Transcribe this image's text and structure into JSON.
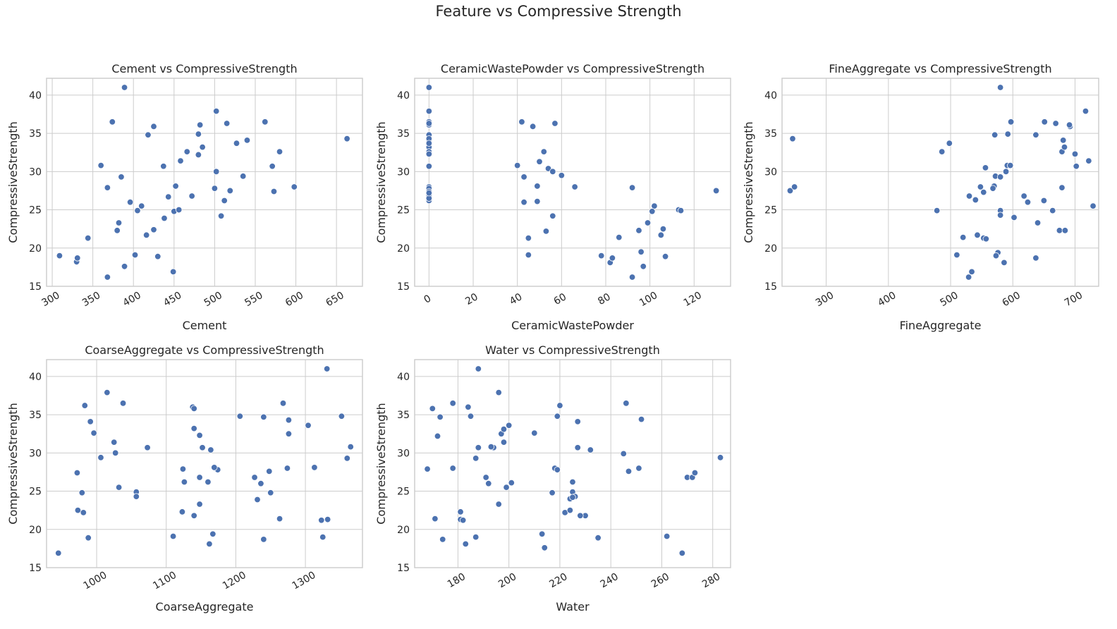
{
  "figure": {
    "title": "Feature vs Compressive Strength",
    "point_color": "#4c72b0",
    "grid_color": "#cccccc"
  },
  "chart_data": [
    {
      "type": "scatter",
      "title": "Cement vs CompressiveStrength",
      "xlabel": "Cement",
      "ylabel": "CompressiveStrength",
      "xlim": [
        293,
        682
      ],
      "ylim": [
        15,
        42.2
      ],
      "xticks": [
        300,
        350,
        400,
        450,
        500,
        550,
        600,
        650
      ],
      "yticks": [
        15,
        20,
        25,
        30,
        35,
        40
      ],
      "x": [
        389,
        502,
        374,
        425,
        562,
        515,
        418,
        482,
        480,
        527,
        540,
        450,
        466,
        385,
        360,
        580,
        571,
        368,
        573,
        502,
        535,
        598,
        663,
        368,
        344,
        330,
        331,
        309,
        380,
        382,
        389,
        396,
        402,
        405,
        410,
        416,
        425,
        430,
        443,
        438,
        437,
        456,
        458,
        452,
        472,
        480,
        485,
        500,
        512,
        508,
        519,
        449
      ],
      "y": [
        41,
        37.9,
        36.5,
        35.9,
        36.5,
        36.3,
        34.8,
        36.1,
        34.9,
        33.7,
        34.1,
        24.8,
        32.6,
        29.3,
        30.8,
        32.6,
        30.7,
        27.9,
        27.4,
        30,
        29.4,
        28,
        34.3,
        16.2,
        21.3,
        18.2,
        18.7,
        19,
        22.3,
        23.3,
        17.6,
        26,
        19.1,
        24.9,
        25.5,
        21.7,
        22.4,
        18.9,
        26.7,
        23.9,
        30.7,
        25,
        31.4,
        28.1,
        26.8,
        32.2,
        33.2,
        27.8,
        26.2,
        24.2,
        27.5,
        16.9
      ]
    },
    {
      "type": "scatter",
      "title": "CeramicWastePowder vs CompressiveStrength",
      "xlabel": "CeramicWastePowder",
      "ylabel": "CompressiveStrength",
      "xlim": [
        -6.5,
        136.5
      ],
      "ylim": [
        15,
        42.2
      ],
      "xticks": [
        0,
        20,
        40,
        60,
        80,
        100,
        120
      ],
      "yticks": [
        15,
        20,
        25,
        30,
        35,
        40
      ],
      "x": [
        0,
        0,
        0,
        0,
        0,
        0,
        0,
        0,
        0,
        0,
        0,
        0,
        0,
        0,
        0,
        0,
        0,
        0,
        0,
        0,
        42,
        47,
        57,
        40,
        52,
        50,
        54,
        56,
        60,
        49,
        43,
        43,
        45,
        49,
        45,
        53,
        56,
        66,
        92,
        102,
        113,
        114,
        101,
        105,
        99,
        92,
        96,
        95,
        97,
        107,
        106,
        78,
        82,
        83,
        86,
        130
      ],
      "y": [
        41,
        37.9,
        36.5,
        36.1,
        34.8,
        34.1,
        33.2,
        32.6,
        32.3,
        30.7,
        28,
        27.8,
        27.4,
        26.8,
        26.2,
        34.3,
        33.7,
        26.5,
        27.2,
        36.3,
        36.5,
        35.9,
        36.3,
        30.8,
        32.6,
        31.3,
        30.4,
        30,
        29.5,
        28.1,
        29.3,
        26,
        21.3,
        26.1,
        19.1,
        22.2,
        24.2,
        28,
        27.9,
        25.5,
        25,
        24.9,
        24.8,
        21.7,
        23.3,
        16.2,
        19.5,
        22.3,
        17.6,
        18.9,
        22.5,
        19,
        18.1,
        18.7,
        21.4,
        27.5
      ]
    },
    {
      "type": "scatter",
      "title": "FineAggregate vs CompressiveStrength",
      "xlabel": "FineAggregate",
      "ylabel": "CompressiveStrength",
      "xlim": [
        229,
        738
      ],
      "ylim": [
        15,
        42.2
      ],
      "xticks": [
        300,
        400,
        500,
        600,
        700
      ],
      "yticks": [
        15,
        20,
        25,
        30,
        35,
        40
      ],
      "x": [
        246,
        242,
        249,
        580,
        717,
        597,
        651,
        669,
        692,
        691,
        571,
        592,
        637,
        681,
        679,
        700,
        722,
        729,
        486,
        498,
        556,
        572,
        580,
        591,
        596,
        570,
        568,
        602,
        589,
        664,
        650,
        618,
        624,
        640,
        675,
        684,
        679,
        702,
        478,
        530,
        548,
        540,
        553,
        543,
        553,
        557,
        510,
        520,
        534,
        576,
        580,
        580,
        573,
        586,
        637,
        683,
        529
      ],
      "y": [
        34.3,
        27.5,
        28,
        41,
        37.9,
        36.5,
        36.5,
        36.3,
        35.9,
        36.1,
        34.8,
        34.9,
        34.8,
        34.1,
        32.6,
        32.3,
        31.4,
        25.5,
        32.6,
        33.7,
        30.5,
        29.4,
        29.3,
        30.8,
        30.8,
        28.1,
        27.8,
        24,
        30,
        24.9,
        26.2,
        26.8,
        26,
        23.3,
        22.3,
        22.3,
        27.9,
        30.7,
        24.9,
        26.8,
        28,
        26.3,
        27.3,
        21.7,
        21.3,
        21.2,
        19.1,
        21.4,
        16.9,
        19.4,
        24.9,
        24.3,
        19,
        18.1,
        18.7,
        33.2,
        16.2
      ]
    },
    {
      "type": "scatter",
      "title": "CoarseAggregate vs CompressiveStrength",
      "xlabel": "CoarseAggregate",
      "ylabel": "CompressiveStrength",
      "xlim": [
        928,
        1382
      ],
      "ylim": [
        15,
        42.2
      ],
      "xticks": [
        1000,
        1100,
        1200,
        1300
      ],
      "yticks": [
        15,
        20,
        25,
        30,
        35,
        40
      ],
      "x": [
        1331,
        1015,
        983,
        1038,
        991,
        996,
        1025,
        1027,
        1006,
        1073,
        972,
        979,
        1032,
        1057,
        1057,
        973,
        981,
        988,
        945,
        1138,
        1140,
        1140,
        1148,
        1152,
        1164,
        1174,
        1169,
        1124,
        1126,
        1148,
        1160,
        1227,
        1231,
        1236,
        1250,
        1248,
        1206,
        1240,
        1268,
        1276,
        1276,
        1304,
        1313,
        1352,
        1360,
        1365,
        1274,
        1123,
        1140,
        1148,
        1162,
        1167,
        1110,
        1240,
        1263,
        1323,
        1332,
        1325
      ],
      "y": [
        41,
        37.9,
        36.2,
        36.5,
        34.1,
        32.6,
        31.4,
        30,
        29.4,
        30.7,
        27.4,
        24.8,
        25.5,
        24.9,
        24.3,
        22.5,
        22.2,
        18.9,
        16.9,
        36,
        35.8,
        33.2,
        32.3,
        30.7,
        30.4,
        27.8,
        28.1,
        27.9,
        26.2,
        26.8,
        26.2,
        26.8,
        23.9,
        26,
        24.8,
        27.6,
        34.8,
        34.7,
        36.5,
        34.3,
        32.5,
        33.6,
        28.1,
        34.8,
        29.3,
        30.8,
        28,
        22.3,
        21.8,
        23.3,
        18.1,
        19.4,
        19.1,
        18.7,
        21.4,
        21.2,
        21.3,
        19
      ],
      "dummy": null
    },
    {
      "type": "scatter",
      "title": "Water vs CompressiveStrength",
      "xlabel": "Water",
      "ylabel": "CompressiveStrength",
      "xlim": [
        163,
        287
      ],
      "ylim": [
        15,
        42.2
      ],
      "xticks": [
        180,
        200,
        220,
        240,
        260,
        280
      ],
      "yticks": [
        15,
        20,
        25,
        30,
        35,
        40
      ],
      "x": [
        188,
        196,
        178,
        170,
        184,
        173,
        185,
        172,
        197,
        198,
        200,
        220,
        227,
        246,
        252,
        218,
        219,
        219,
        210,
        188,
        194,
        187,
        178,
        168,
        191,
        192,
        199,
        201,
        217,
        225,
        225,
        245,
        247,
        251,
        232,
        227,
        222,
        230,
        224,
        224,
        226,
        225,
        228,
        181,
        181,
        182,
        183,
        187,
        171,
        174,
        198,
        196,
        213,
        214,
        235,
        262,
        270,
        272,
        273,
        268,
        283,
        193
      ],
      "y": [
        41,
        37.9,
        36.5,
        35.8,
        36,
        34.7,
        34.8,
        32.2,
        32.5,
        33.1,
        33.6,
        36.2,
        34.1,
        36.5,
        34.4,
        28,
        27.8,
        34.8,
        32.6,
        30.7,
        30.7,
        29.3,
        28,
        27.9,
        26.8,
        26,
        25.5,
        26.1,
        24.8,
        26.2,
        24.9,
        29.9,
        27.6,
        28,
        30.4,
        30.7,
        22.2,
        21.8,
        22.5,
        24,
        24.3,
        24.2,
        21.8,
        21.3,
        22.3,
        21.2,
        18.1,
        19,
        21.4,
        18.7,
        31.4,
        23.3,
        19.4,
        17.6,
        18.9,
        19.1,
        26.8,
        26.8,
        27.4,
        16.9,
        29.4,
        30.8
      ]
    }
  ]
}
